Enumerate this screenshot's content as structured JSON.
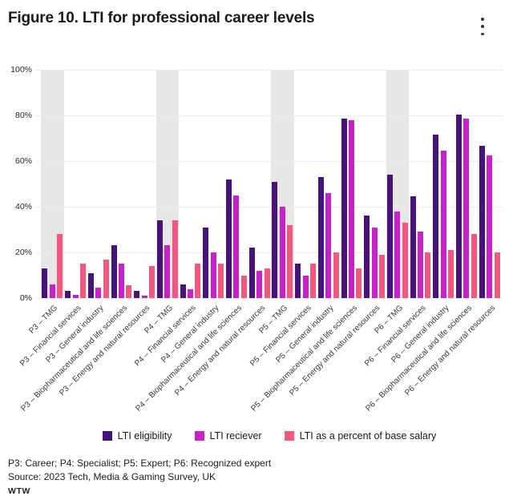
{
  "header": {
    "title": "Figure 10. LTI for professional career levels"
  },
  "chart_data": {
    "type": "bar",
    "title": "Figure 10. LTI for professional career levels",
    "xlabel": "",
    "ylabel": "",
    "ylim": [
      0,
      100
    ],
    "y_tick_values": [
      0,
      20,
      40,
      60,
      80,
      100
    ],
    "y_tick_suffix": "%",
    "grid": true,
    "legend_position": "bottom",
    "highlight_band_color": "#e7e7e7",
    "highlighted_categories": [
      "P3 – TMG",
      "P4 – TMG",
      "P5 – TMG",
      "P6 – TMG"
    ],
    "categories": [
      "P3 – TMG",
      "P3 – Financial services",
      "P3 – General industry",
      "P3 – Biopharmaceutical and life sciences",
      "P3 – Energy and natural resources",
      "P4 – TMG",
      "P4 – Financial services",
      "P4 – General industry",
      "P4 – Biopharmaceutical and life sciences",
      "P4 – Energy and natural resources",
      "P5 – TMG",
      "P5 – Financial services",
      "P5 – General industry",
      "P5 – Biopharmaceutical and life sciences",
      "P5 – Energy and natural resources",
      "P6 – TMG",
      "P6 – Financial services",
      "P6 – General industry",
      "P6 – Biopharmaceutical and life sciences",
      "P6 – Energy and natural resources"
    ],
    "series": [
      {
        "name": "LTI eligibility",
        "color": "#47137b",
        "values": [
          13,
          3,
          11,
          23,
          3,
          34,
          6,
          31,
          52,
          22,
          51,
          15,
          53,
          78.5,
          36,
          54,
          44.5,
          71.5,
          80.5,
          66.5
        ]
      },
      {
        "name": "LTI reciever",
        "color": "#c722c9",
        "values": [
          6,
          1.5,
          4.5,
          15,
          1,
          23,
          4,
          20,
          45,
          12,
          40,
          10,
          46,
          78,
          31,
          38,
          29,
          64.5,
          78.5,
          62.5
        ]
      },
      {
        "name": "LTI as a percent of base salary",
        "color": "#f1577f",
        "values": [
          28,
          15,
          17,
          5.5,
          14,
          34,
          15,
          15,
          10,
          13,
          32,
          15,
          20,
          13,
          19,
          33,
          20,
          21,
          28,
          20
        ]
      }
    ]
  },
  "footer": {
    "note": "P3: Career; P4: Specialist; P5: Expert; P6: Recognized expert",
    "source": "Source: 2023 Tech, Media & Gaming Survey, UK",
    "brand": "WTW"
  }
}
